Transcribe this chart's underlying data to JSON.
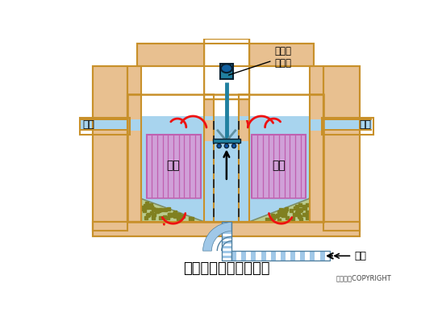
{
  "title": "接触氧化池基本构造图",
  "copyright": "东方仿真COPYRIGHT",
  "label_surface_aerator": "表面曝\n气装置",
  "label_filler_left": "填料",
  "label_filler_right": "填料",
  "label_outlet_left": "出流",
  "label_outlet_right": "出流",
  "label_raw_water": "原水",
  "bg_color": "#FFFFFF",
  "tan": "#E8C090",
  "tan_edge": "#C8902A",
  "water": "#A8D4EE",
  "filler_fc": "#D0A0D8",
  "filler_lc": "#C060B0",
  "sediment_fc": "#C8C850",
  "sediment_dot": "#808020",
  "sediment_edge": "#606010",
  "aerator_teal": "#2080A0",
  "aerator_dark": "#104060",
  "aerator_mid": "#1870A0",
  "pipe_fill": "#A0C8E8",
  "pipe_edge": "#5080A0",
  "arrow_red": "#EE1111",
  "arrow_black": "#111111",
  "dash_color": "#222222",
  "white_zone": "#FFFFFF"
}
